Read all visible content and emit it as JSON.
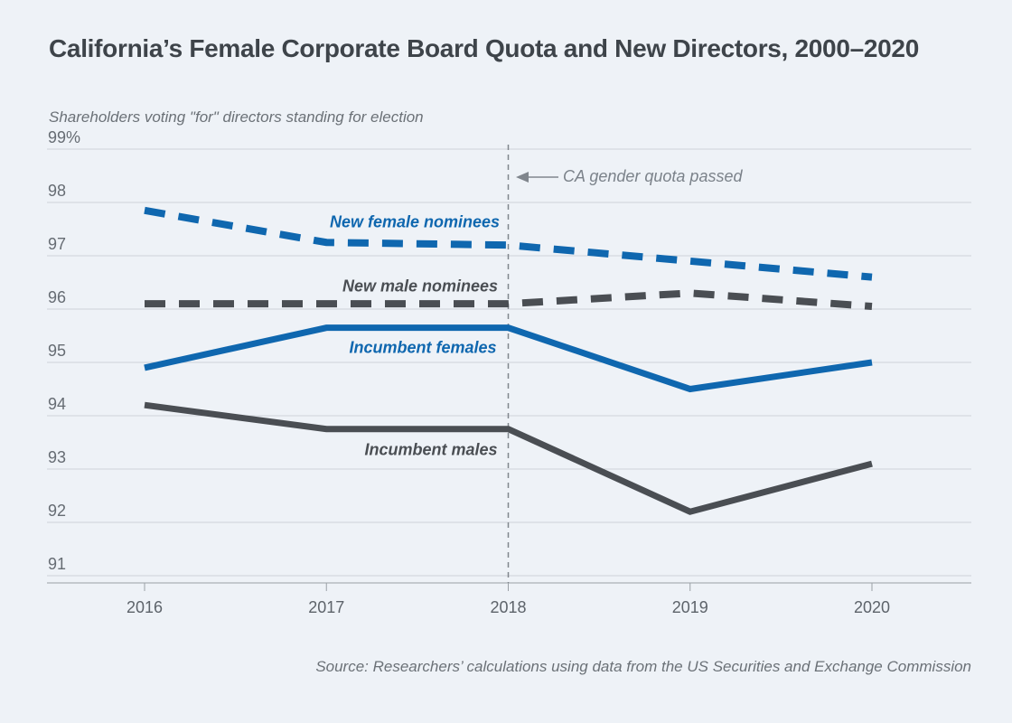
{
  "header": {
    "title": "California’s Female Corporate Board Quota and New Directors, 2000–2020"
  },
  "chart": {
    "subtitle": "Shareholders voting \"for\" directors standing for election",
    "annotation": "CA gender quota passed"
  },
  "footer": {
    "source": "Source: Researchers’ calculations using data from the US Securities and Exchange Commission"
  },
  "colors": {
    "blue": "#0f67af",
    "dark": "#4a4e53",
    "grid": "#cfd3d8",
    "axis": "#9aa0a6",
    "annotation": "#80868d",
    "title": "#3e444a",
    "muted": "#6b7177"
  },
  "chart_data": {
    "type": "line",
    "title": "California’s Female Corporate Board Quota and New Directors, 2000–2020",
    "ylabel": "Shareholders voting \"for\" directors standing for election",
    "xlabel": "",
    "x": [
      2016,
      2017,
      2018,
      2019,
      2020
    ],
    "series": [
      {
        "name": "New female nominees",
        "style": "dashed",
        "color_key": "blue",
        "values": [
          97.85,
          97.25,
          97.2,
          96.9,
          96.6
        ]
      },
      {
        "name": "New male nominees",
        "style": "dashed",
        "color_key": "dark",
        "values": [
          96.1,
          96.1,
          96.1,
          96.3,
          96.05
        ]
      },
      {
        "name": "Incumbent females",
        "style": "solid",
        "color_key": "blue",
        "values": [
          94.9,
          95.65,
          95.65,
          94.5,
          95.0
        ]
      },
      {
        "name": "Incumbent males",
        "style": "solid",
        "color_key": "dark",
        "values": [
          94.2,
          93.75,
          93.75,
          92.2,
          93.1
        ]
      }
    ],
    "yticks": [
      99,
      98,
      97,
      96,
      95,
      94,
      93,
      92,
      91
    ],
    "ytick_labels": [
      "99%",
      "98",
      "97",
      "96",
      "95",
      "94",
      "93",
      "92",
      "91"
    ],
    "ylim": [
      91,
      99
    ],
    "grid": "horizontal",
    "legend_position": "inline-labels",
    "annotation_x": 2018
  }
}
